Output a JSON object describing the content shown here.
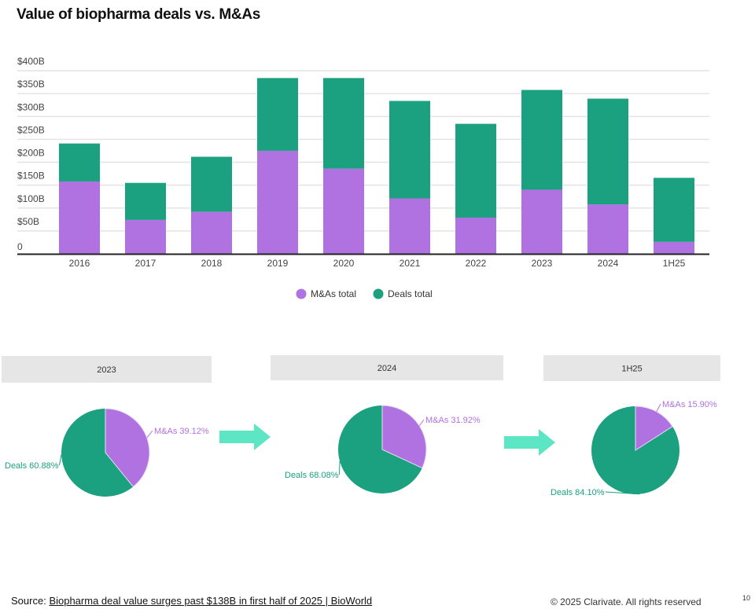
{
  "title": "Value of biopharma deals vs. M&As",
  "colors": {
    "mna": "#b072e0",
    "deals": "#1ba17f",
    "arrow": "#5ce6c4",
    "header_bg": "#e6e6e6",
    "grid": "#e4e4e4"
  },
  "chart_data": [
    {
      "type": "bar",
      "stacked": true,
      "title": "Value of biopharma deals vs. M&As",
      "categories": [
        "2016",
        "2017",
        "2018",
        "2019",
        "2020",
        "2021",
        "2022",
        "2023",
        "2024",
        "1H25"
      ],
      "series": [
        {
          "name": "M&As total",
          "values": [
            158,
            74,
            92,
            225,
            186,
            121,
            79,
            140,
            108,
            26
          ]
        },
        {
          "name": "Deals total",
          "values": [
            83,
            81,
            120,
            159,
            198,
            213,
            205,
            218,
            231,
            140
          ]
        }
      ],
      "yticks": [
        "0",
        "$50B",
        "$100B",
        "$150B",
        "$200B",
        "$250B",
        "$300B",
        "$350B",
        "$400B"
      ],
      "ylim": [
        0,
        400
      ],
      "unit": "$B",
      "grid": true,
      "legend": "bottom"
    },
    {
      "type": "pie",
      "title": "2023",
      "slices": [
        {
          "name": "M&As",
          "value": 39.12,
          "label": "M&As 39.12%"
        },
        {
          "name": "Deals",
          "value": 60.88,
          "label": "Deals 60.88%"
        }
      ]
    },
    {
      "type": "pie",
      "title": "2024",
      "slices": [
        {
          "name": "M&As",
          "value": 31.92,
          "label": "M&As 31.92%"
        },
        {
          "name": "Deals",
          "value": 68.08,
          "label": "Deals 68.08%"
        }
      ]
    },
    {
      "type": "pie",
      "title": "1H25",
      "slices": [
        {
          "name": "M&As",
          "value": 15.9,
          "label": "M&As 15.90%"
        },
        {
          "name": "Deals",
          "value": 84.1,
          "label": "Deals 84.10%"
        }
      ]
    }
  ],
  "footer": {
    "source_label": "Source:",
    "source_link": "Biopharma deal value surges past $138B in first half of 2025 | BioWorld",
    "copyright": "© 2025 Clarivate. All rights reserved",
    "page_number": "10"
  }
}
